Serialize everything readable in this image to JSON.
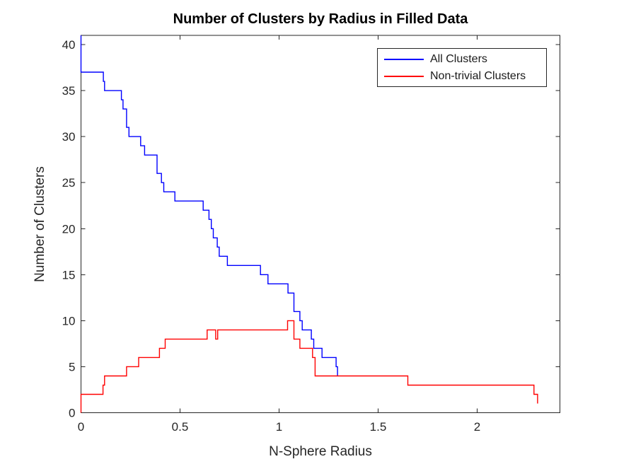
{
  "chart_data": {
    "type": "line",
    "subtype": "stairs",
    "title": "Number of Clusters by Radius in Filled Data",
    "xlabel": "N-Sphere Radius",
    "ylabel": "Number of Clusters",
    "xlim": [
      0,
      2.418
    ],
    "ylim": [
      0,
      41
    ],
    "grid": false,
    "axes_color": "#262626",
    "legend_position": "top-right-inside",
    "xticks": {
      "values": [
        0,
        0.5,
        1,
        1.5,
        2
      ],
      "labels": [
        "0",
        "0.5",
        "1",
        "1.5",
        "2"
      ]
    },
    "yticks": {
      "values": [
        0,
        5,
        10,
        15,
        20,
        25,
        30,
        35,
        40
      ],
      "labels": [
        "0",
        "5",
        "10",
        "15",
        "20",
        "25",
        "30",
        "35",
        "40"
      ]
    },
    "series": [
      {
        "name": "All Clusters",
        "color": "#0000ff",
        "points": [
          [
            0,
            41
          ],
          [
            0,
            37
          ],
          [
            0.113,
            36
          ],
          [
            0.119,
            35
          ],
          [
            0.204,
            34
          ],
          [
            0.212,
            33
          ],
          [
            0.23,
            31
          ],
          [
            0.242,
            30
          ],
          [
            0.301,
            29
          ],
          [
            0.321,
            28
          ],
          [
            0.384,
            26
          ],
          [
            0.406,
            25
          ],
          [
            0.418,
            24
          ],
          [
            0.474,
            23
          ],
          [
            0.617,
            22
          ],
          [
            0.646,
            21
          ],
          [
            0.658,
            20
          ],
          [
            0.668,
            19
          ],
          [
            0.688,
            18
          ],
          [
            0.698,
            17
          ],
          [
            0.739,
            16
          ],
          [
            0.906,
            15
          ],
          [
            0.944,
            14
          ],
          [
            1.045,
            13
          ],
          [
            1.075,
            11
          ],
          [
            1.105,
            10
          ],
          [
            1.117,
            9
          ],
          [
            1.163,
            8
          ],
          [
            1.175,
            7
          ],
          [
            1.217,
            6
          ],
          [
            1.288,
            5
          ],
          [
            1.295,
            4
          ]
        ]
      },
      {
        "name": "Non-trivial Clusters",
        "color": "#ff0000",
        "points": [
          [
            0,
            0
          ],
          [
            0,
            2
          ],
          [
            0.111,
            3
          ],
          [
            0.119,
            4
          ],
          [
            0.23,
            5
          ],
          [
            0.291,
            6
          ],
          [
            0.396,
            7
          ],
          [
            0.425,
            8
          ],
          [
            0.637,
            9
          ],
          [
            0.68,
            8
          ],
          [
            0.69,
            9
          ],
          [
            1.043,
            10
          ],
          [
            1.075,
            8
          ],
          [
            1.105,
            7
          ],
          [
            1.169,
            6
          ],
          [
            1.182,
            4
          ],
          [
            1.65,
            3
          ],
          [
            2.287,
            2
          ],
          [
            2.305,
            1
          ]
        ]
      }
    ]
  }
}
